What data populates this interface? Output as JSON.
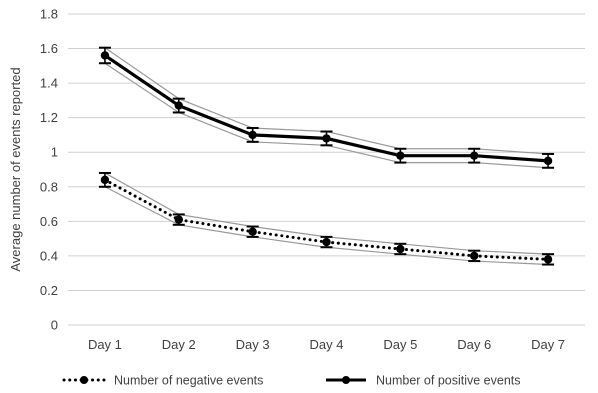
{
  "chart_data": {
    "type": "line",
    "title": "",
    "xlabel": "",
    "ylabel": "Average number of events reported",
    "categories": [
      "Day 1",
      "Day 2",
      "Day 3",
      "Day 4",
      "Day 5",
      "Day 6",
      "Day 7"
    ],
    "ylim": [
      0,
      1.8
    ],
    "yticks": [
      0,
      0.2,
      0.4,
      0.6,
      0.8,
      1,
      1.2,
      1.4,
      1.6,
      1.8
    ],
    "ytick_labels": [
      "0",
      "0.2",
      "0.4",
      "0.6",
      "0.8",
      "1",
      "1.2",
      "1.4",
      "1.6",
      "1.8"
    ],
    "grid": true,
    "legend_position": "bottom",
    "series": [
      {
        "name": "Number of negative events",
        "style": "dotted",
        "values": [
          0.84,
          0.61,
          0.54,
          0.48,
          0.44,
          0.4,
          0.38
        ],
        "error": [
          0.04,
          0.03,
          0.03,
          0.03,
          0.03,
          0.03,
          0.03
        ]
      },
      {
        "name": "Number of positive events",
        "style": "solid",
        "values": [
          1.56,
          1.27,
          1.1,
          1.08,
          0.98,
          0.98,
          0.95
        ],
        "error": [
          0.045,
          0.04,
          0.04,
          0.04,
          0.04,
          0.04,
          0.04
        ]
      }
    ],
    "colors": {
      "line": "#000000",
      "band": "#999999",
      "grid": "#d0d0d0",
      "text": "#404040"
    }
  }
}
